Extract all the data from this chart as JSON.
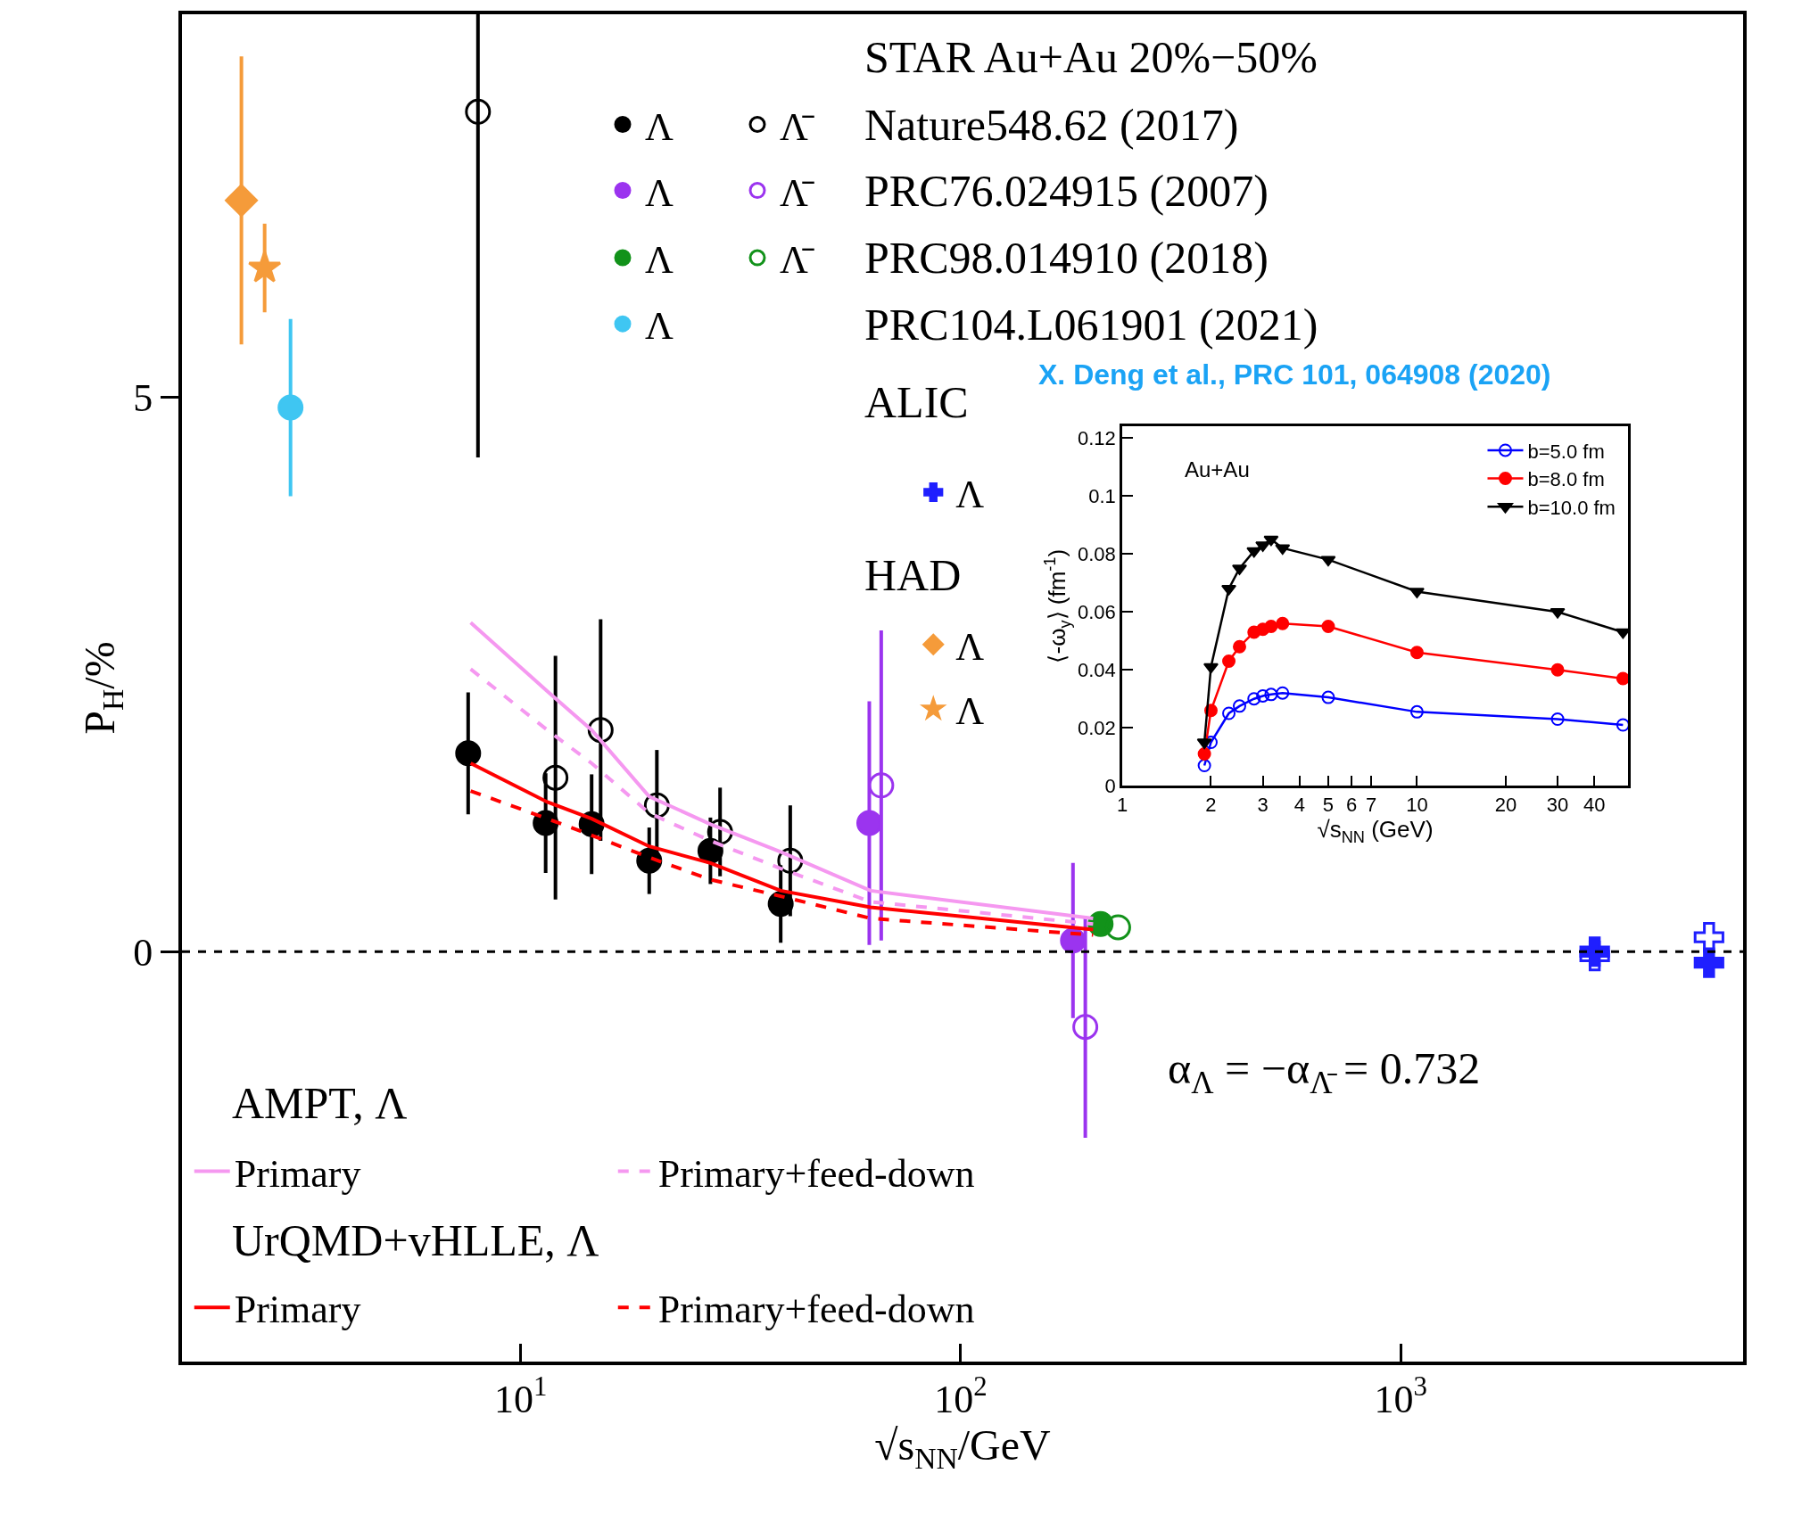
{
  "chart_data": [
    {
      "type": "scatter",
      "xlabel": "√s$_{NN}$/GeV",
      "ylabel": "P$_{H}$/%",
      "legend_title": "STAR Au+Au 20%−50%",
      "log": "x",
      "xlim": [
        1.7,
        6000
      ],
      "xticks": [
        {
          "value": 10,
          "label": "10$^{1}$"
        },
        {
          "value": 100,
          "label": "10$^{2}$"
        },
        {
          "value": 1000,
          "label": "10$^{3}$"
        }
      ],
      "ylim": [
        -3.7,
        8.46
      ],
      "yticks": [
        0,
        5
      ],
      "legend": "left",
      "ref_lines": [
        {
          "axis": "y",
          "value": 0,
          "line_style": "dashed",
          "color": "#000000"
        }
      ],
      "annotations": [
        "Nature548.62 (2017)",
        "PRC76.024915 (2007)",
        "PRC98.014910 (2018)",
        "PRC104.L061901 (2021)",
        "ALIC",
        "HAD",
        "AMPT, Λ",
        "UrQMD+vHLLE, Λ",
        "α$_{Λ}$ = −α$_{Λ̄}$ = 0.732"
      ],
      "series": [
        {
          "type": "scatter",
          "name": "Λ",
          "color": "#000000",
          "marker": "circle",
          "x": [
            7.6,
            11.4,
            14.5,
            19.6,
            27,
            39
          ],
          "values": [
            1.79,
            1.16,
            1.15,
            0.82,
            0.91,
            0.43
          ],
          "errors": [
            0.55,
            0.45,
            0.45,
            0.3,
            0.3,
            0.35
          ]
        },
        {
          "type": "scatter",
          "name": "Λ̄",
          "color": "#000000",
          "marker": "circle-open",
          "x": [
            8.0,
            12.0,
            15.2,
            20.4,
            28.4,
            41
          ],
          "values": [
            7.58,
            1.57,
            2.0,
            1.32,
            1.08,
            0.82
          ],
          "errors": [
            [
              4.46,
              8.46
            ],
            1.1,
            1.0,
            0.5,
            0.4,
            0.5
          ]
        },
        {
          "type": "scatter",
          "name": "Λ",
          "color": "#9b34ef",
          "marker": "circle",
          "x": [
            62,
            180
          ],
          "values": [
            1.16,
            0.1
          ],
          "errors": [
            1.1,
            0.7
          ]
        },
        {
          "type": "scatter",
          "name": "Λ̄",
          "color": "#9b34ef",
          "marker": "circle-open",
          "x": [
            66,
            192
          ],
          "values": [
            1.5,
            -0.68
          ],
          "errors": [
            1.4,
            1.0
          ]
        },
        {
          "type": "scatter",
          "name": "Λ",
          "color": "#12921a",
          "marker": "circle",
          "x": [
            208
          ],
          "values": [
            0.25
          ]
        },
        {
          "type": "scatter",
          "name": "Λ̄",
          "color": "#12921a",
          "marker": "circle-open",
          "x": [
            228
          ],
          "values": [
            0.22
          ]
        },
        {
          "type": "scatter",
          "name": "Λ",
          "color": "#3fc6f2",
          "marker": "circle",
          "x": [
            3.0
          ],
          "values": [
            4.91
          ],
          "errors": [
            0.8
          ]
        },
        {
          "type": "scatter",
          "name": "Λ",
          "color": "#1f1fff",
          "marker": "cross",
          "x": [
            2760,
            5020
          ],
          "values": [
            0.0,
            -0.1
          ]
        },
        {
          "type": "scatter",
          "color": "#1f1fff",
          "marker": "cross-open",
          "x": [
            2760,
            5020
          ],
          "values": [
            -0.04,
            0.13
          ]
        },
        {
          "type": "scatter",
          "name": "Λ",
          "color": "#f59b3a",
          "marker": "diamond",
          "x": [
            2.32
          ],
          "values": [
            6.78
          ],
          "errors": [
            1.3
          ]
        },
        {
          "type": "scatter",
          "name": "Λ",
          "color": "#f59b3a",
          "marker": "star",
          "x": [
            2.62
          ],
          "values": [
            6.17
          ],
          "errors": [
            0.4
          ]
        },
        {
          "type": "line",
          "name": "Primary",
          "color": "#f598f0",
          "line_style": "solid",
          "x": [
            7.7,
            11.5,
            14.5,
            19.6,
            27,
            39,
            62.4,
            200
          ],
          "values": [
            2.97,
            2.35,
            2.0,
            1.4,
            1.15,
            0.9,
            0.55,
            0.3
          ]
        },
        {
          "type": "line",
          "name": "Primary+feed-down",
          "color": "#f598f0",
          "line_style": "dashed",
          "x": [
            7.7,
            11.5,
            14.5,
            19.6,
            27,
            39,
            62.4,
            200
          ],
          "values": [
            2.55,
            2.0,
            1.7,
            1.25,
            1.0,
            0.75,
            0.45,
            0.25
          ]
        },
        {
          "type": "line",
          "name": "Primary",
          "color": "#ff0000",
          "line_style": "solid",
          "x": [
            7.7,
            11.5,
            14.5,
            19.6,
            27,
            39,
            62.4,
            200
          ],
          "values": [
            1.7,
            1.35,
            1.2,
            0.95,
            0.8,
            0.55,
            0.4,
            0.2
          ]
        },
        {
          "type": "line",
          "name": "Primary+feed-down",
          "color": "#ff0000",
          "line_style": "dashed",
          "x": [
            7.7,
            11.5,
            14.5,
            19.6,
            27,
            39,
            62.4,
            200
          ],
          "values": [
            1.45,
            1.2,
            1.05,
            0.85,
            0.65,
            0.5,
            0.3,
            0.15
          ]
        }
      ]
    },
    {
      "type": "line",
      "title": "X. Deng et al., PRC 101, 064908 (2020)",
      "xlabel": "√s$_{NN}$ (GeV)",
      "ylabel": "⟨-ω$_{y}$⟩ (fm$^{-1}$)",
      "annotations": [
        "Au+Au"
      ],
      "log": "x",
      "xlim": [
        1,
        52
      ],
      "xticks": [
        1,
        2,
        3,
        4,
        5,
        6,
        7,
        10,
        20,
        30,
        40
      ],
      "ylim": [
        0,
        0.124
      ],
      "yticks": [
        0,
        0.02,
        0.04,
        0.06,
        0.08,
        0.1,
        0.12
      ],
      "legend": "top right",
      "x": [
        1.9,
        2,
        2.3,
        2.5,
        2.8,
        3,
        3.2,
        3.5,
        5,
        10,
        30,
        50
      ],
      "series": [
        {
          "name": "b=5.0 fm",
          "color": "#0000ff",
          "marker": "circle-open",
          "values": [
            0.007,
            0.015,
            0.025,
            0.0275,
            0.03,
            0.031,
            0.0315,
            0.032,
            0.0305,
            0.0255,
            0.023,
            0.021
          ]
        },
        {
          "name": "b=8.0 fm",
          "color": "#ff0000",
          "marker": "circle",
          "values": [
            0.011,
            0.026,
            0.043,
            0.048,
            0.053,
            0.054,
            0.055,
            0.056,
            0.055,
            0.046,
            0.04,
            0.037
          ]
        },
        {
          "name": "b=10.0 fm",
          "color": "#000000",
          "marker": "triangle",
          "values": [
            0.015,
            0.041,
            0.068,
            0.075,
            0.081,
            0.083,
            0.085,
            0.082,
            0.078,
            0.067,
            0.06,
            0.053
          ]
        }
      ]
    }
  ]
}
